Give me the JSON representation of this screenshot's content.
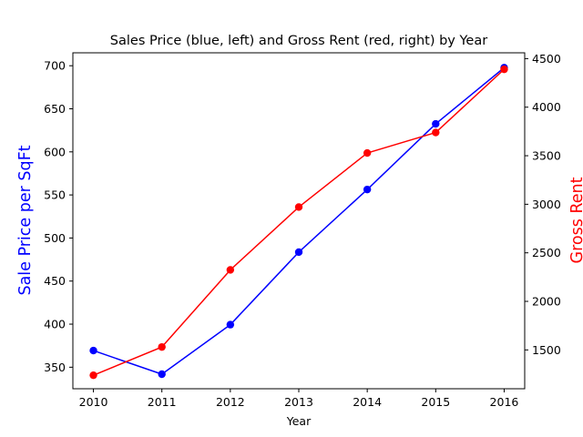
{
  "chart_data": {
    "type": "line",
    "title": "Sales Price (blue, left) and Gross Rent (red, right) by Year",
    "xlabel": "Year",
    "ylabel_left": "Sale Price per SqFt",
    "ylabel_right": "Gross Rent",
    "x": [
      2010,
      2011,
      2012,
      2013,
      2014,
      2015,
      2016
    ],
    "series": [
      {
        "axis": "left",
        "color": "#0000ff",
        "values": [
          369.3,
          341.9,
          399.4,
          483.6,
          556.3,
          632.5,
          697.7
        ]
      },
      {
        "axis": "right",
        "color": "#ff0000",
        "values": [
          1239,
          1530,
          2324,
          2971,
          3528,
          3739,
          4390
        ]
      }
    ],
    "ylim_left": [
      325,
      715
    ],
    "ylim_right": [
      1100,
      4560
    ],
    "yticks_left": [
      350,
      400,
      450,
      500,
      550,
      600,
      650,
      700
    ],
    "yticks_right": [
      1500,
      2000,
      2500,
      3000,
      3500,
      4000,
      4500
    ],
    "xlim": [
      2009.7,
      2016.3
    ],
    "grid": false,
    "legend": "none"
  }
}
